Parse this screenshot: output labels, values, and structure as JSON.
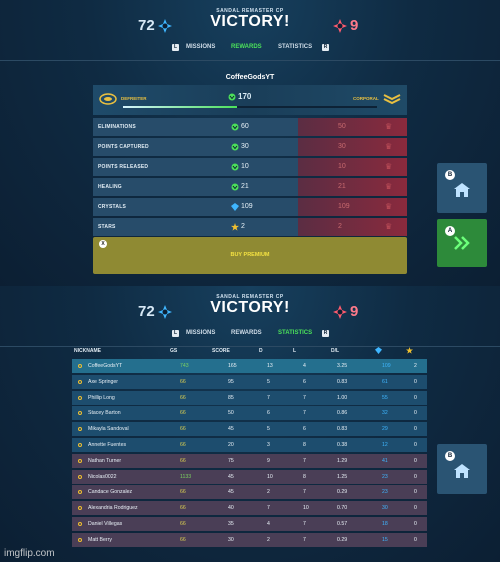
{
  "header": {
    "subtitle": "SANDAL REMASTER CP",
    "result": "VICTORY!",
    "blue_score": "72",
    "red_score": "9",
    "key_left": "L",
    "key_right": "R"
  },
  "top_tabs": {
    "items": [
      "MISSIONS",
      "REWARDS",
      "STATISTICS"
    ],
    "active": "REWARDS"
  },
  "bottom_tabs": {
    "items": [
      "MISSIONS",
      "REWARDS",
      "STATISTICS"
    ],
    "active": "STATISTICS"
  },
  "rewards": {
    "player": "CoffeeGodsYT",
    "current_rank": "DEFREITER",
    "next_rank": "CORPORAL",
    "xp_gained": "170",
    "xp_progress": 0.45,
    "rows": [
      {
        "label": "ELIMINATIONS",
        "value": "60",
        "locked_value": "50",
        "icon": "xp-icon"
      },
      {
        "label": "POINTS CAPTURED",
        "value": "30",
        "locked_value": "30",
        "icon": "xp-icon"
      },
      {
        "label": "POINTS RELEASED",
        "value": "10",
        "locked_value": "10",
        "icon": "xp-icon"
      },
      {
        "label": "HEALING",
        "value": "21",
        "locked_value": "21",
        "icon": "xp-icon"
      },
      {
        "label": "CRYSTALS",
        "value": "109",
        "locked_value": "109",
        "icon": "crystal-icon"
      },
      {
        "label": "STARS",
        "value": "2",
        "locked_value": "2",
        "icon": "star-icon"
      }
    ],
    "premium_button": "BUY PREMIUM",
    "premium_key": "X"
  },
  "side_buttons": {
    "home_key": "B",
    "next_key": "A"
  },
  "scoreboard": {
    "headers": {
      "nickname": "NICKNAME",
      "gs": "GS",
      "score": "SCORE",
      "d": "D",
      "l": "L",
      "dl": "D/L"
    },
    "blue_team": [
      {
        "name": "CoffeeGodsYT",
        "gs": "743",
        "score": "165",
        "d": "13",
        "l": "4",
        "dl": "3.25",
        "crystals": "109",
        "stars": "2"
      },
      {
        "name": "Axe Springer",
        "gs": "66",
        "score": "95",
        "d": "5",
        "l": "6",
        "dl": "0.83",
        "crystals": "61",
        "stars": "0"
      },
      {
        "name": "Phillip Long",
        "gs": "66",
        "score": "85",
        "d": "7",
        "l": "7",
        "dl": "1.00",
        "crystals": "55",
        "stars": "0"
      },
      {
        "name": "Stacey Barton",
        "gs": "66",
        "score": "50",
        "d": "6",
        "l": "7",
        "dl": "0.86",
        "crystals": "32",
        "stars": "0"
      },
      {
        "name": "Mikayla Sandoval",
        "gs": "66",
        "score": "45",
        "d": "5",
        "l": "6",
        "dl": "0.83",
        "crystals": "29",
        "stars": "0"
      },
      {
        "name": "Annette Fuentes",
        "gs": "66",
        "score": "20",
        "d": "3",
        "l": "8",
        "dl": "0.38",
        "crystals": "12",
        "stars": "0"
      }
    ],
    "red_team": [
      {
        "name": "Nathan Turner",
        "gs": "66",
        "score": "75",
        "d": "9",
        "l": "7",
        "dl": "1.29",
        "crystals": "41",
        "stars": "0"
      },
      {
        "name": "Nicolas0022",
        "gs": "1133",
        "score": "45",
        "d": "10",
        "l": "8",
        "dl": "1.25",
        "crystals": "23",
        "stars": "0"
      },
      {
        "name": "Candace Gonzalez",
        "gs": "66",
        "score": "45",
        "d": "2",
        "l": "7",
        "dl": "0.29",
        "crystals": "23",
        "stars": "0"
      },
      {
        "name": "Alexandria Rodriguez",
        "gs": "66",
        "score": "40",
        "d": "7",
        "l": "10",
        "dl": "0.70",
        "crystals": "30",
        "stars": "0"
      },
      {
        "name": "Daniel Villegas",
        "gs": "66",
        "score": "35",
        "d": "4",
        "l": "7",
        "dl": "0.57",
        "crystals": "18",
        "stars": "0"
      },
      {
        "name": "Matt Berry",
        "gs": "66",
        "score": "30",
        "d": "2",
        "l": "7",
        "dl": "0.29",
        "crystals": "15",
        "stars": "0"
      }
    ]
  },
  "watermark": "imgflip.com",
  "colors": {
    "blue_accent": "#3fb6ff",
    "green_active": "#4be05a",
    "red_team": "#ff7a8a",
    "gold_rank": "#e9c040"
  }
}
